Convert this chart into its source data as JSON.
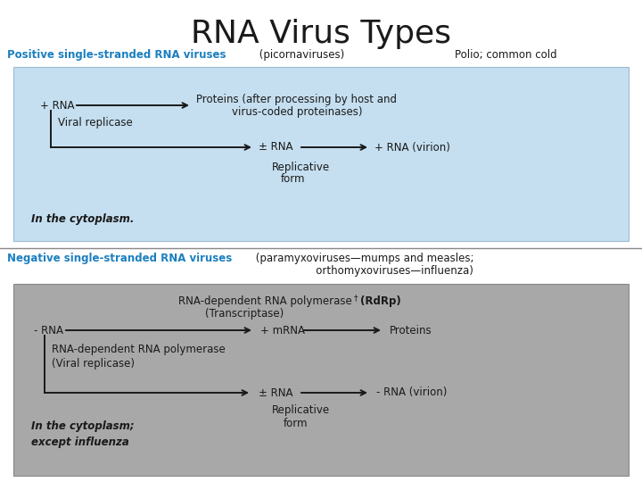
{
  "title": "RNA Virus Types",
  "bg_color": "#ffffff",
  "blue_color": "#1a7fc0",
  "black_color": "#1a1a1a",
  "dark_color": "#1a1a1a",
  "section1_box_color": "#c5dff0",
  "section2_box_color": "#a8a8a8",
  "separator_color": "#888888",
  "sec1_blue": "Positive single-stranded RNA viruses",
  "sec1_black": " (picornaviruses)",
  "sec1_example": "Polio; common cold",
  "sec2_blue": "Negative single-stranded RNA viruses",
  "sec2_black1": " (paramyxoviruses—mumps and measles;",
  "sec2_black2": "orthomyxoviruses—influenza)",
  "p1_rna": "+ RNA",
  "p1_proteins": "Proteins (after processing by host and",
  "p1_proteins2": "virus-coded proteinases)",
  "p1_viral_rep": "Viral replicase",
  "p1_pm_rna": "± RNA",
  "p1_virion": "+ RNA (virion)",
  "p1_rep_form": "Replicative\nform",
  "p1_cytoplasm": "In the cytoplasm.",
  "p2_rdp1": "RNA-dependent RNA polymerase",
  "p2_rdp_dagger": "†",
  "p2_rdp_bold": "(RdRp)",
  "p2_transcript": "(Transcriptase)",
  "p2_mrna_rna": "- RNA",
  "p2_pmrna": "+ mRNA",
  "p2_proteins": "Proteins",
  "p2_rdp2": "RNA-dependent RNA polymerase",
  "p2_viral_rep": "(Viral replicase)",
  "p2_pm_rna": "± RNA",
  "p2_virion": "- RNA (virion)",
  "p2_rep_form": "Replicative\nform",
  "p2_cytoplasm1": "In the cytoplasm;",
  "p2_cytoplasm2": "except influenza"
}
